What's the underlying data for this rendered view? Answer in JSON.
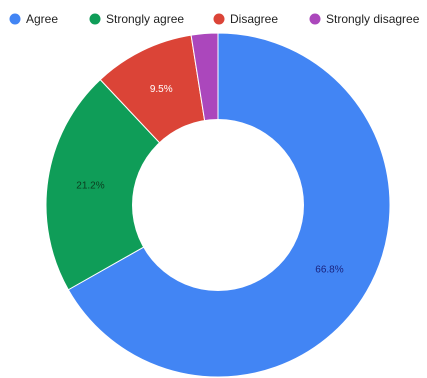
{
  "chart_data": {
    "type": "pie",
    "donut": true,
    "legend_position": "top",
    "start_angle_deg": 0,
    "direction": "clockwise",
    "slices": [
      {
        "name": "Agree",
        "value": 66.8,
        "label": "66.8%",
        "color": "#4285f4",
        "label_color": "#1a237e"
      },
      {
        "name": "Strongly agree",
        "value": 21.2,
        "label": "21.2%",
        "color": "#0f9d58",
        "label_color": "#0b3d1f"
      },
      {
        "name": "Disagree",
        "value": 9.5,
        "label": "9.5%",
        "color": "#db4437",
        "label_color": "#ffffff"
      },
      {
        "name": "Strongly disagree",
        "value": 2.5,
        "label": "",
        "color": "#ab47bc",
        "label_color": "#ffffff"
      }
    ]
  }
}
